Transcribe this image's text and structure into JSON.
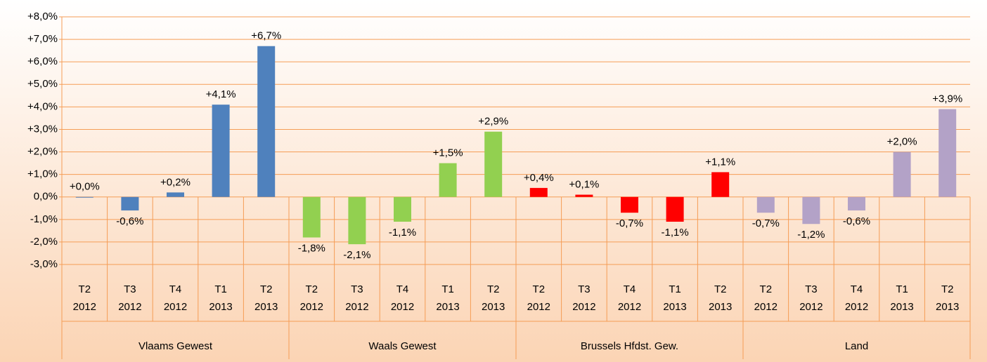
{
  "chart_data": {
    "type": "bar",
    "categories": [
      [
        "T2",
        "2012"
      ],
      [
        "T3",
        "2012"
      ],
      [
        "T4",
        "2012"
      ],
      [
        "T1",
        "2013"
      ],
      [
        "T2",
        "2013"
      ]
    ],
    "series": [
      {
        "name": "Vlaams Gewest",
        "color": "#4f81bd",
        "values": [
          0.0,
          -0.6,
          0.2,
          4.1,
          6.7
        ],
        "value_labels": [
          "+0,0%",
          "-0,6%",
          "+0,2%",
          "+4,1%",
          "+6,7%"
        ]
      },
      {
        "name": "Waals Gewest",
        "color": "#92d050",
        "values": [
          -1.8,
          -2.1,
          -1.1,
          1.5,
          2.9
        ],
        "value_labels": [
          "-1,8%",
          "-2,1%",
          "-1,1%",
          "+1,5%",
          "+2,9%"
        ]
      },
      {
        "name": "Brussels Hfdst. Gew.",
        "color": "#ff0000",
        "values": [
          0.4,
          0.1,
          -0.7,
          -1.1,
          1.1
        ],
        "value_labels": [
          "+0,4%",
          "+0,1%",
          "-0,7%",
          "-1,1%",
          "+1,1%"
        ]
      },
      {
        "name": "Land",
        "color": "#b3a2c7",
        "values": [
          -0.7,
          -1.2,
          -0.6,
          2.0,
          3.9
        ],
        "value_labels": [
          "-0,7%",
          "-1,2%",
          "-0,6%",
          "+2,0%",
          "+3,9%"
        ]
      }
    ],
    "ylim": [
      -3,
      8
    ],
    "yticks": [
      {
        "value": 8,
        "label": "+8,0%"
      },
      {
        "value": 7,
        "label": "+7,0%"
      },
      {
        "value": 6,
        "label": "+6,0%"
      },
      {
        "value": 5,
        "label": "+5,0%"
      },
      {
        "value": 4,
        "label": "+4,0%"
      },
      {
        "value": 3,
        "label": "+3,0%"
      },
      {
        "value": 2,
        "label": "+2,0%"
      },
      {
        "value": 1,
        "label": "+1,0%"
      },
      {
        "value": 0,
        "label": "0,0%"
      },
      {
        "value": -1,
        "label": "-1,0%"
      },
      {
        "value": -2,
        "label": "-2,0%"
      },
      {
        "value": -3,
        "label": "-3,0%"
      }
    ],
    "grid": true
  }
}
